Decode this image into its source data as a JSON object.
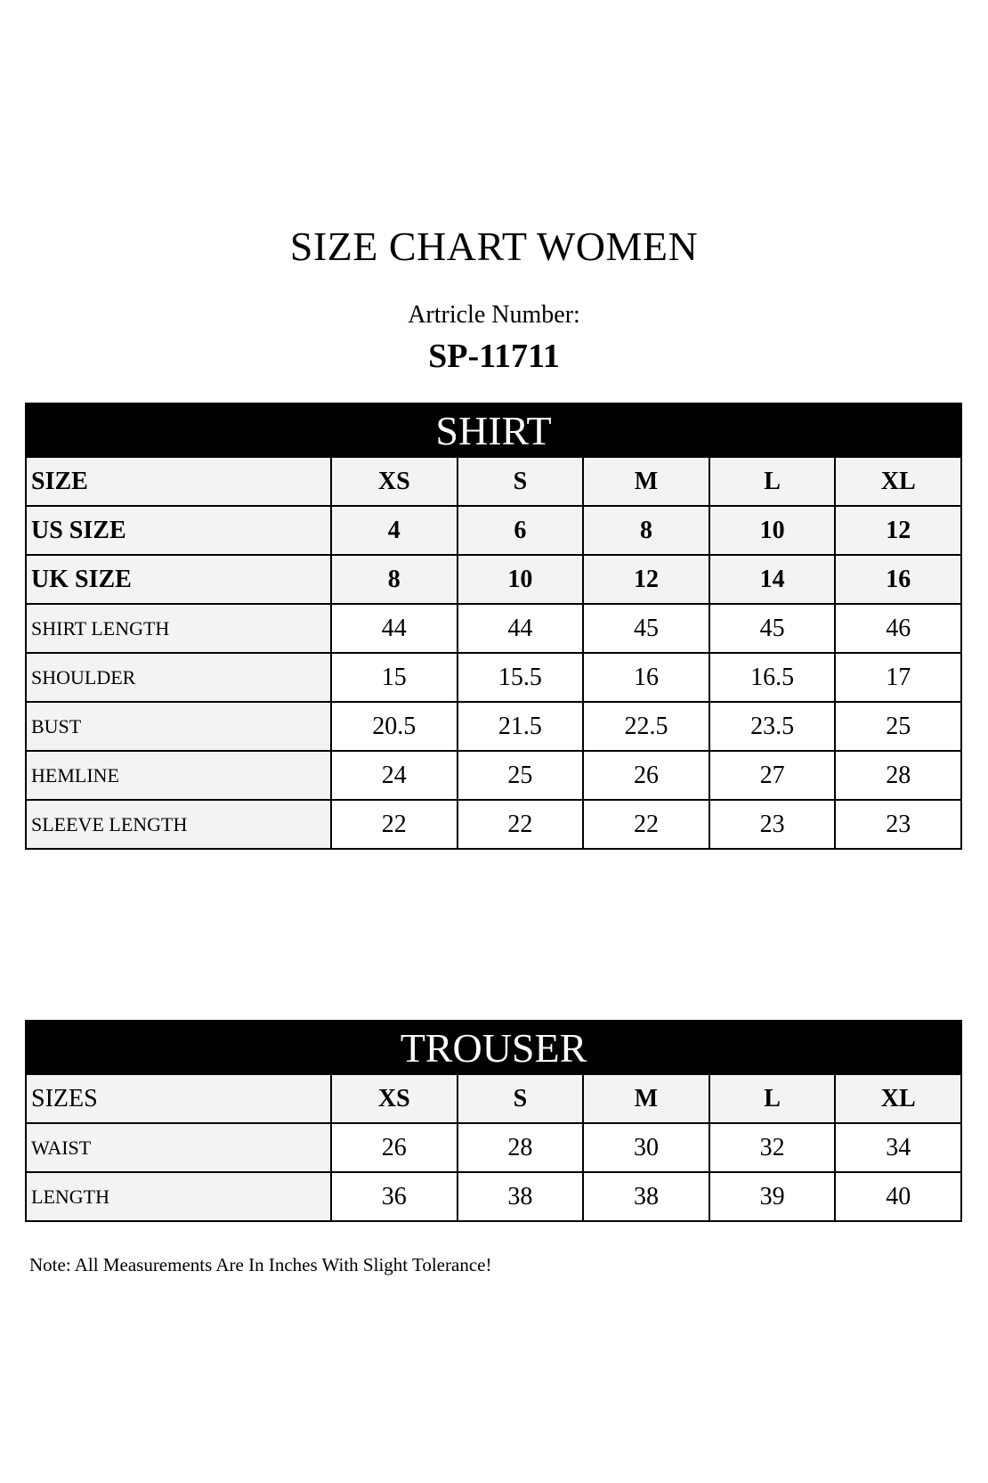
{
  "title": "SIZE CHART WOMEN",
  "article_label": "Artricle Number:",
  "article_number": "SP-11711",
  "shirt": {
    "heading": "SHIRT",
    "header_rows": [
      {
        "label": "SIZE",
        "values": [
          "XS",
          "S",
          "M",
          "L",
          "XL"
        ]
      },
      {
        "label": "US SIZE",
        "values": [
          "4",
          "6",
          "8",
          "10",
          "12"
        ]
      },
      {
        "label": "UK SIZE",
        "values": [
          "8",
          "10",
          "12",
          "14",
          "16"
        ]
      }
    ],
    "rows": [
      {
        "label": "SHIRT LENGTH",
        "values": [
          "44",
          "44",
          "45",
          "45",
          "46"
        ]
      },
      {
        "label": "SHOULDER",
        "values": [
          "15",
          "15.5",
          "16",
          "16.5",
          "17"
        ]
      },
      {
        "label": "BUST",
        "values": [
          "20.5",
          "21.5",
          "22.5",
          "23.5",
          "25"
        ]
      },
      {
        "label": "HEMLINE",
        "values": [
          "24",
          "25",
          "26",
          "27",
          "28"
        ]
      },
      {
        "label": "SLEEVE LENGTH",
        "values": [
          "22",
          "22",
          "22",
          "23",
          "23"
        ]
      }
    ]
  },
  "trouser": {
    "heading": "TROUSER",
    "header_rows": [
      {
        "label": "SIZES",
        "values": [
          "XS",
          "S",
          "M",
          "L",
          "XL"
        ]
      }
    ],
    "rows": [
      {
        "label": "WAIST",
        "values": [
          "26",
          "28",
          "30",
          "32",
          "34"
        ]
      },
      {
        "label": "LENGTH",
        "values": [
          "36",
          "38",
          "38",
          "39",
          "40"
        ]
      }
    ]
  },
  "note": "Note: All Measurements Are In Inches With Slight Tolerance!"
}
